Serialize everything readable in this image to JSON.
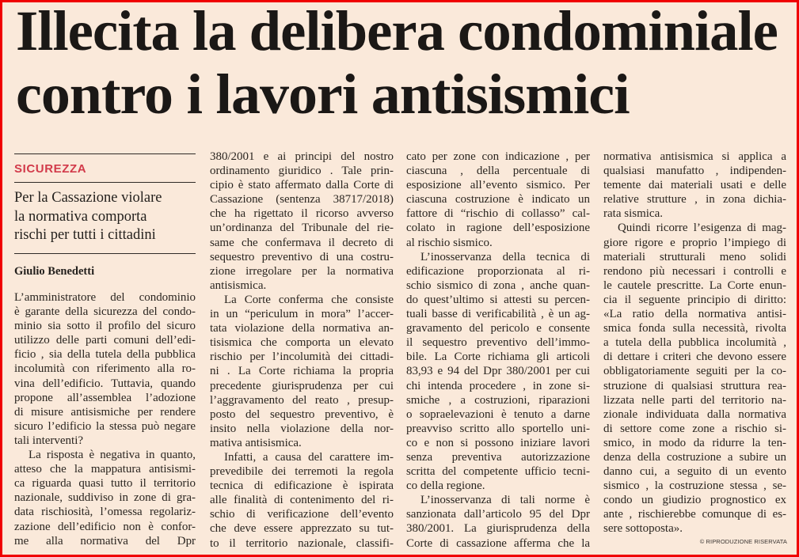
{
  "headline": {
    "lines": [
      "Illecita la delibera condominiale",
      "contro i lavori antisismici"
    ]
  },
  "kicker": "SICUREZZA",
  "subhead": [
    "Per la Cassazione violare",
    "la normativa comporta",
    "rischi per tutti i cittadini"
  ],
  "byline": "Giulio Benedetti",
  "colors": {
    "frame": "#f00000",
    "background": "#fae9da",
    "kicker": "#d23a4a",
    "text": "#2a2520"
  },
  "columns": [
    [
      [
        "L’amministratore del condominio",
        "è garante della sicurezza del condo-",
        "minio sia sotto il profilo del sicuro",
        "utilizzo delle parti comuni dell’edi-",
        "ficio , sia della tutela della pubblica",
        "incolumità con riferimento alla ro-",
        "vina dell’edificio. Tuttavia, quando",
        "propone all’assemblea l’adozione",
        "di misure antisismiche per rendere",
        "sicuro l’edificio la stessa può negare",
        "tali interventi?"
      ],
      [
        "La risposta è negativa in quanto,",
        "atteso che la mappatura antisismi-",
        "ca riguarda quasi tutto il territorio",
        "nazionale, suddiviso in zone di gra-",
        "data rischiosità, l’omessa regolariz-",
        "zazione dell’edificio non è confor-",
        "me alla normativa del Dpr"
      ]
    ],
    [
      [
        "380/2001 e ai principi del nostro",
        "ordinamento giuridico . Tale prin-",
        "cipio è stato affermato dalla Corte di",
        "Cassazione (sentenza 38717/2018)",
        "che ha rigettato il ricorso avverso",
        "un’ordinanza del Tribunale del rie-",
        "same che confermava il decreto di",
        "sequestro preventivo di una costru-",
        "zione irregolare per la normativa",
        "antisismica."
      ],
      [
        "La Corte conferma che consiste",
        "in un “periculum in mora” l’accer-",
        "tata violazione della normativa an-",
        "tisismica che comporta un elevato",
        "rischio per l’incolumità dei cittadi-",
        "ni . La Corte richiama la propria",
        "precedente giurisprudenza per cui",
        "l’aggravamento del reato , presup-",
        "posto del sequestro preventivo, è",
        "insito nella violazione della nor-",
        "mativa antisismica."
      ],
      [
        "Infatti, a causa del carattere im-",
        "prevedibile dei terremoti la regola",
        "tecnica di edificazione è ispirata",
        "alle finalità di contenimento del ri-",
        "schio di verificazione dell’evento",
        "che deve essere apprezzato su tut-",
        "to il territorio nazionale, classifi-"
      ]
    ],
    [
      [
        "cato per zone con indicazione , per",
        "ciascuna , della percentuale di",
        "esposizione all’evento sismico. Per",
        "ciascuna costruzione è indicato un",
        "fattore di “rischio di collasso” cal-",
        "colato in ragione dell’esposizione",
        "al rischio sismico."
      ],
      [
        "L’inosservanza della tecnica di",
        "edificazione proporzionata al ri-",
        "schio sismico di zona , anche quan-",
        "do quest’ultimo si attesti su percen-",
        "tuali basse di verificabilità , è un ag-",
        "gravamento del pericolo e consente",
        "il sequestro preventivo dell’immo-",
        "bile. La Corte richiama gli articoli",
        "83,93 e 94 del Dpr 380/2001 per cui",
        "chi intenda procedere , in zone si-",
        "smiche , a costruzioni, riparazioni",
        "o sopraelevazioni è tenuto a darne",
        "preavviso scritto allo sportello uni-",
        "co e non si possono iniziare lavori",
        "senza preventiva autorizzazione",
        "scritta del competente ufficio tecni-",
        "co della regione."
      ],
      [
        "L’inosservanza di tali norme è",
        "sanzionata dall’articolo 95 del Dpr",
        "380/2001. La giurisprudenza della",
        "Corte di cassazione afferma che la"
      ]
    ],
    [
      [
        "normativa antisismica si applica a",
        "qualsiasi manufatto , indipenden-",
        "temente dai materiali usati e delle",
        "relative strutture , in zona dichia-",
        "rata sismica."
      ],
      [
        "Quindi ricorre l’esigenza di mag-",
        "giore rigore e proprio l’impiego di",
        "materiali strutturali meno solidi",
        "rendono più necessari i controlli e",
        "le cautele prescritte. La Corte enun-",
        "cia il seguente principio di diritto:",
        "«La ratio della normativa antisi-",
        "smica fonda sulla necessità, rivolta",
        "a tutela della pubblica incolumità ,",
        "di dettare i criteri che devono essere",
        "obbligatoriamente seguiti per la co-",
        "struzione di qualsiasi struttura rea-",
        "lizzata nelle parti del territorio na-",
        "zionale individuata dalla normativa",
        "di settore come zone a rischio si-",
        "smico, in modo da ridurre la ten-",
        "denza della costruzione a subire un",
        "danno cui, a seguito di un evento",
        "sismico , la costruzione stessa , se-",
        "condo un giudizio prognostico ex",
        "ante , rischierebbe comunque di es-",
        "sere sottoposta»."
      ]
    ]
  ],
  "copyright": "© RIPRODUZIONE RISERVATA"
}
